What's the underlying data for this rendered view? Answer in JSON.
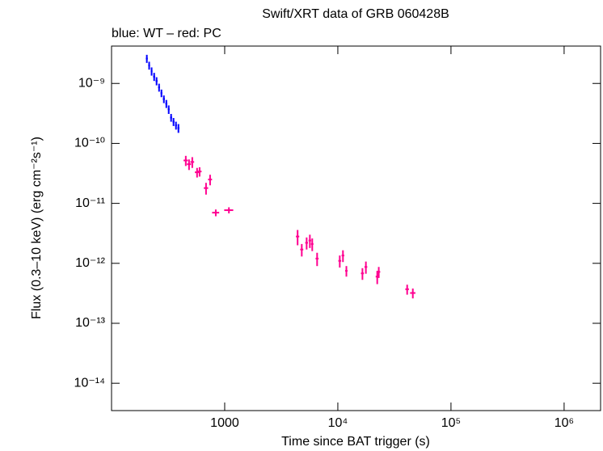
{
  "chart_data": {
    "type": "errorbar-scatter",
    "title": "Swift/XRT data of GRB 060428B",
    "subtitle": "blue: WT – red: PC",
    "x_label": "Time since BAT trigger (s)",
    "y_label": "Flux (0.3–10 keV) (erg cm⁻²s⁻¹)",
    "xscale": "log",
    "yscale": "log",
    "xlim": [
      100,
      2100000
    ],
    "ylim": [
      3.5e-15,
      4.2e-09
    ],
    "xticks": [
      1000,
      {
        "value": 10000,
        "label": "10⁴"
      },
      {
        "value": 100000,
        "label": "10⁵"
      },
      {
        "value": 1000000,
        "label": "10⁶"
      }
    ],
    "yticks": [
      {
        "value": 1e-14,
        "label": "10⁻¹⁴"
      },
      {
        "value": 1e-13,
        "label": "10⁻¹³"
      },
      {
        "value": 1e-12,
        "label": "10⁻¹²"
      },
      {
        "value": 1e-11,
        "label": "10⁻¹¹"
      },
      {
        "value": 1e-10,
        "label": "10⁻¹⁰"
      },
      {
        "value": 1e-09,
        "label": "10⁻⁹"
      }
    ],
    "series": [
      {
        "color": "#0000ff",
        "x": [
          205,
          215,
          226,
          238,
          250,
          263,
          276,
          290,
          305,
          320,
          336,
          353,
          371,
          390
        ],
        "xerr": [
          4,
          4,
          4,
          5,
          5,
          5,
          5,
          6,
          6,
          6,
          7,
          7,
          7,
          8
        ],
        "values": [
          2.6e-09,
          2e-09,
          1.6e-09,
          1.3e-09,
          1.1e-09,
          8.6e-10,
          6.9e-10,
          5.5e-10,
          4.6e-10,
          3.7e-10,
          2.7e-10,
          2.3e-10,
          2e-10,
          1.8e-10
        ],
        "yerr": [
          4e-10,
          3e-10,
          2.5e-10,
          2e-10,
          1.7e-10,
          1.3e-10,
          1e-10,
          8e-11,
          7e-11,
          6e-11,
          4e-11,
          3.5e-11,
          3e-11,
          3e-11
        ]
      },
      {
        "color": "#ff0090",
        "x": [
          453,
          484,
          517,
          570,
          600,
          684,
          743,
          834,
          1090,
          4410,
          4800,
          5300,
          5660,
          5940,
          6560,
          10400,
          11100,
          11900,
          16500,
          17700,
          22300,
          23000,
          41000,
          46000
        ],
        "xerr": [
          20,
          20,
          20,
          25,
          25,
          30,
          30,
          60,
          100,
          150,
          150,
          150,
          150,
          150,
          200,
          300,
          300,
          300,
          500,
          500,
          700,
          700,
          1500,
          2500
        ],
        "values": [
          5.2e-11,
          4.5e-11,
          4.9e-11,
          3.3e-11,
          3.4e-11,
          1.8e-11,
          2.5e-11,
          7e-12,
          7.7e-12,
          2.8e-12,
          1.7e-12,
          2.2e-12,
          2.4e-12,
          2.1e-12,
          1.2e-12,
          1.1e-12,
          1.35e-12,
          7.5e-13,
          6.8e-13,
          8.7e-13,
          6e-13,
          7.2e-13,
          3.7e-13,
          3.2e-13
        ],
        "yerr": [
          1e-11,
          9e-12,
          1e-11,
          6e-12,
          6e-12,
          4e-12,
          5e-12,
          9e-13,
          9e-13,
          8e-13,
          4e-13,
          5e-13,
          6e-13,
          5e-13,
          3e-13,
          2.5e-13,
          3e-13,
          1.5e-13,
          1.5e-13,
          2e-13,
          1.5e-13,
          1.5e-13,
          7e-14,
          6e-14
        ]
      }
    ]
  }
}
